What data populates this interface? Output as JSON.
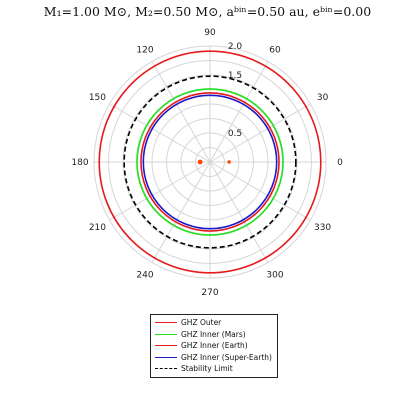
{
  "chart_data": {
    "type": "polar",
    "title_parts": {
      "m1": "M₁=1.00 M⊙",
      "m2": "M₂=0.50 M⊙",
      "abin": "aᵇⁱⁿ=0.50 au",
      "ebin": "eᵇⁱⁿ=0.00"
    },
    "rlim": [
      0,
      2.0
    ],
    "r_ticks": [
      "0.5",
      "1.5",
      "2.0"
    ],
    "angle_ticks": [
      "0",
      "30",
      "60",
      "90",
      "120",
      "150",
      "180",
      "210",
      "240",
      "270",
      "300",
      "330"
    ],
    "grid": true,
    "legend_position": "bottom",
    "series": [
      {
        "name": "GHZ Outer",
        "radius": 1.91,
        "color": "#e41a1c",
        "dash": "solid"
      },
      {
        "name": "GHZ Inner (Mars)",
        "radius": 1.26,
        "color": "#22e022",
        "dash": "solid"
      },
      {
        "name": "GHZ Inner (Earth)",
        "radius": 1.19,
        "color": "#e41a1c",
        "dash": "solid"
      },
      {
        "name": "GHZ Inner (Super-Earth)",
        "radius": 1.15,
        "color": "#1a1acc",
        "dash": "solid"
      },
      {
        "name": "Stability Limit",
        "radius": 1.48,
        "color": "#000000",
        "dash": "dashed"
      }
    ],
    "stars": [
      {
        "r": 0.17,
        "angle_deg": 180,
        "color": "#ff4500"
      },
      {
        "r": 0.33,
        "angle_deg": 0,
        "color": "#ff4500"
      }
    ]
  }
}
